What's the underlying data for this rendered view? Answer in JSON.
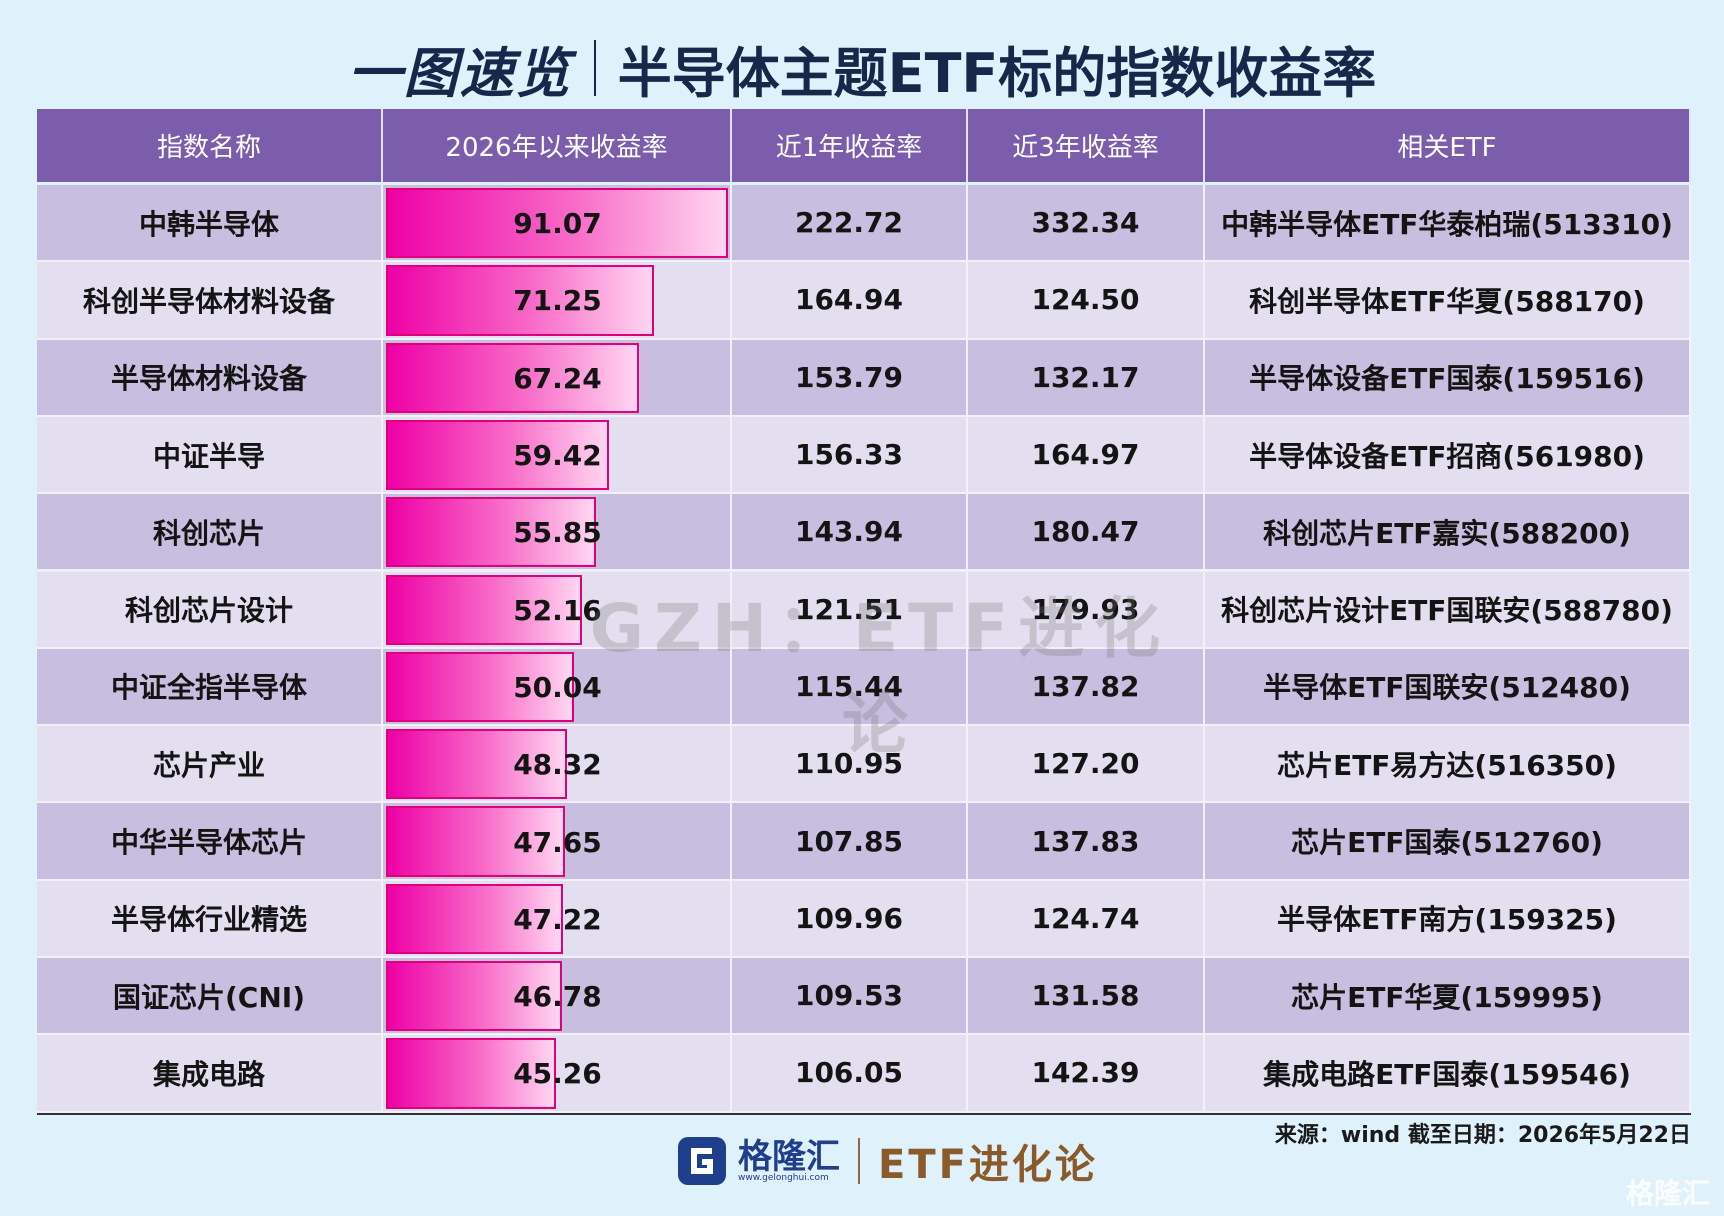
{
  "header": {
    "title_left": "一图速览",
    "title_right": "半导体主题ETF标的指数收益率"
  },
  "table": {
    "columns": [
      "指数名称",
      "2026年以来收益率",
      "近1年收益率",
      "近3年收益率",
      "相关ETF"
    ],
    "rows": [
      [
        "中韩半导体",
        "91.07",
        "222.72",
        "332.34",
        "中韩半导体ETF华泰柏瑞(513310)"
      ],
      [
        "科创半导体材料设备",
        "71.25",
        "164.94",
        "124.50",
        "科创半导体ETF华夏(588170)"
      ],
      [
        "半导体材料设备",
        "67.24",
        "153.79",
        "132.17",
        "半导体设备ETF国泰(159516)"
      ],
      [
        "中证半导",
        "59.42",
        "156.33",
        "164.97",
        "半导体设备ETF招商(561980)"
      ],
      [
        "科创芯片",
        "55.85",
        "143.94",
        "180.47",
        "科创芯片ETF嘉实(588200)"
      ],
      [
        "科创芯片设计",
        "52.16",
        "121.51",
        "179.93",
        "科创芯片设计ETF国联安(588780)"
      ],
      [
        "中证全指半导体",
        "50.04",
        "115.44",
        "137.82",
        "半导体ETF国联安(512480)"
      ],
      [
        "芯片产业",
        "48.32",
        "110.95",
        "127.20",
        "芯片ETF易方达(516350)"
      ],
      [
        "中华半导体芯片",
        "47.65",
        "107.85",
        "137.83",
        "芯片ETF国泰(512760)"
      ],
      [
        "半导体行业精选",
        "47.22",
        "109.96",
        "124.74",
        "半导体ETF南方(159325)"
      ],
      [
        "国证芯片(CNI)",
        "46.78",
        "109.53",
        "131.58",
        "芯片ETF华夏(159995)"
      ],
      [
        "集成电路",
        "45.26",
        "106.05",
        "142.39",
        "集成电路ETF国泰(159546)"
      ]
    ]
  },
  "watermark": "GZH：ETF进化论",
  "footer": {
    "source": "来源：wind 截至日期：2026年5月22日",
    "logo_name": "格隆汇",
    "logo_url": "www.gelonghui.com",
    "brand": "ETF进化论",
    "corner": "格隆汇"
  }
}
